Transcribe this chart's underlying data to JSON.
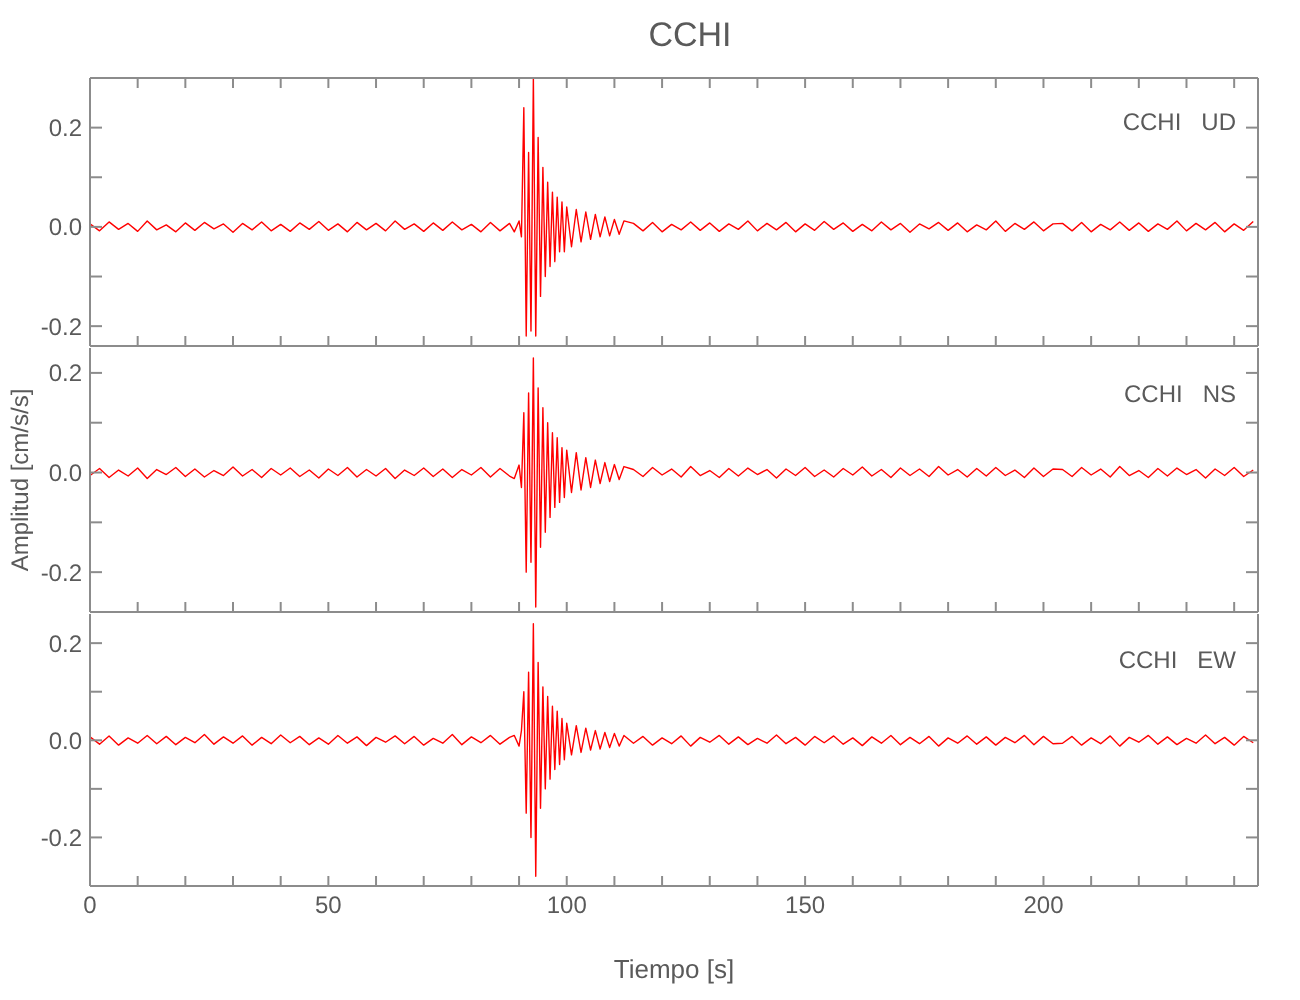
{
  "chart_data": [
    {
      "type": "line",
      "title": "CCHI",
      "annotations": [
        "CCHI   UD"
      ],
      "tick_labels": "y",
      "xlim": [
        0,
        245
      ],
      "ylim": [
        -0.24,
        0.3
      ],
      "yticks": [
        {
          "value": -0.2,
          "label": "-0.2"
        },
        {
          "value": -0.1,
          "label": null
        },
        {
          "value": 0,
          "label": "0.0"
        },
        {
          "value": 0.1,
          "label": null
        },
        {
          "value": 0.2,
          "label": "0.2"
        }
      ],
      "xticks": [
        0,
        {
          "value": 10,
          "label": null
        },
        {
          "value": 20,
          "label": null
        },
        {
          "value": 30,
          "label": null
        },
        {
          "value": 40,
          "label": null
        },
        50,
        {
          "value": 60,
          "label": null
        },
        {
          "value": 70,
          "label": null
        },
        {
          "value": 80,
          "label": null
        },
        {
          "value": 90,
          "label": null
        },
        100,
        {
          "value": 110,
          "label": null
        },
        {
          "value": 120,
          "label": null
        },
        {
          "value": 130,
          "label": null
        },
        {
          "value": 140,
          "label": null
        },
        150,
        {
          "value": 160,
          "label": null
        },
        {
          "value": 170,
          "label": null
        },
        {
          "value": 180,
          "label": null
        },
        {
          "value": 190,
          "label": null
        },
        200,
        {
          "value": 210,
          "label": null
        },
        {
          "value": 220,
          "label": null
        },
        {
          "value": 230,
          "label": null
        },
        {
          "value": 240,
          "label": null
        }
      ],
      "x": [
        0,
        2,
        4,
        6,
        8,
        10,
        12,
        14,
        16,
        18,
        20,
        22,
        24,
        26,
        28,
        30,
        32,
        34,
        36,
        38,
        40,
        42,
        44,
        46,
        48,
        50,
        52,
        54,
        56,
        58,
        60,
        62,
        64,
        66,
        68,
        70,
        72,
        74,
        76,
        78,
        80,
        82,
        84,
        86,
        88,
        89,
        90,
        90.5,
        91,
        91.5,
        92,
        92.5,
        93,
        93.5,
        94,
        94.5,
        95,
        95.5,
        96,
        96.5,
        97,
        97.5,
        98,
        98.5,
        99,
        99.5,
        100,
        101,
        102,
        103,
        104,
        105,
        106,
        107,
        108,
        109,
        110,
        111,
        112,
        114,
        116,
        118,
        120,
        122,
        124,
        126,
        128,
        130,
        132,
        134,
        136,
        138,
        140,
        142,
        144,
        146,
        148,
        150,
        152,
        154,
        156,
        158,
        160,
        162,
        164,
        166,
        168,
        170,
        172,
        174,
        176,
        178,
        180,
        182,
        184,
        186,
        188,
        190,
        192,
        194,
        196,
        198,
        200,
        202,
        204,
        206,
        208,
        210,
        212,
        214,
        216,
        218,
        220,
        222,
        224,
        226,
        228,
        230,
        232,
        234,
        236,
        238,
        240,
        242,
        244
      ],
      "series": [
        {
          "color": "#ff0000",
          "values": [
            0.006,
            -0.008,
            0.01,
            -0.005,
            0.007,
            -0.009,
            0.012,
            -0.006,
            0.004,
            -0.01,
            0.008,
            -0.007,
            0.009,
            -0.004,
            0.006,
            -0.011,
            0.007,
            -0.006,
            0.01,
            -0.008,
            0.005,
            -0.009,
            0.008,
            -0.005,
            0.011,
            -0.007,
            0.006,
            -0.01,
            0.009,
            -0.006,
            0.007,
            -0.008,
            0.012,
            -0.005,
            0.006,
            -0.009,
            0.008,
            -0.007,
            0.01,
            -0.006,
            0.005,
            -0.01,
            0.009,
            -0.008,
            0.007,
            -0.01,
            0.012,
            -0.02,
            0.24,
            -0.22,
            0.15,
            -0.21,
            0.3,
            -0.22,
            0.18,
            -0.14,
            0.12,
            -0.1,
            0.09,
            -0.08,
            0.07,
            -0.07,
            0.06,
            -0.05,
            0.05,
            -0.05,
            0.04,
            -0.04,
            0.035,
            -0.03,
            0.03,
            -0.025,
            0.025,
            -0.02,
            0.02,
            -0.018,
            0.015,
            -0.015,
            0.012,
            0.007,
            -0.008,
            0.009,
            -0.01,
            0.005,
            -0.006,
            0.01,
            -0.007,
            0.008,
            -0.009,
            0.006,
            -0.005,
            0.012,
            -0.008,
            0.007,
            -0.006,
            0.009,
            -0.01,
            0.006,
            -0.007,
            0.011,
            -0.005,
            0.008,
            -0.009,
            0.005,
            -0.008,
            0.01,
            -0.006,
            0.007,
            -0.011,
            0.006,
            -0.004,
            0.009,
            -0.007,
            0.008,
            -0.01,
            0.004,
            -0.006,
            0.012,
            -0.009,
            0.007,
            -0.005,
            0.01,
            -0.008,
            0.006,
            0.007,
            -0.008,
            0.009,
            -0.01,
            0.005,
            -0.006,
            0.01,
            -0.007,
            0.008,
            -0.009,
            0.006,
            -0.005,
            0.012,
            -0.008,
            0.007,
            -0.006,
            0.009,
            -0.01,
            0.006,
            -0.007,
            0.011
          ]
        }
      ]
    },
    {
      "type": "line",
      "ylabel": "Amplitud [cm/s/s]",
      "annotations": [
        "CCHI   NS"
      ],
      "tick_labels": "y",
      "xlim": [
        0,
        245
      ],
      "ylim": [
        -0.28,
        0.25
      ],
      "yticks": [
        {
          "value": -0.2,
          "label": "-0.2"
        },
        {
          "value": -0.1,
          "label": null
        },
        {
          "value": 0,
          "label": "0.0"
        },
        {
          "value": 0.1,
          "label": null
        },
        {
          "value": 0.2,
          "label": "0.2"
        }
      ],
      "xticks": [
        0,
        {
          "value": 10,
          "label": null
        },
        {
          "value": 20,
          "label": null
        },
        {
          "value": 30,
          "label": null
        },
        {
          "value": 40,
          "label": null
        },
        50,
        {
          "value": 60,
          "label": null
        },
        {
          "value": 70,
          "label": null
        },
        {
          "value": 80,
          "label": null
        },
        {
          "value": 90,
          "label": null
        },
        100,
        {
          "value": 110,
          "label": null
        },
        {
          "value": 120,
          "label": null
        },
        {
          "value": 130,
          "label": null
        },
        {
          "value": 140,
          "label": null
        },
        150,
        {
          "value": 160,
          "label": null
        },
        {
          "value": 170,
          "label": null
        },
        {
          "value": 180,
          "label": null
        },
        {
          "value": 190,
          "label": null
        },
        200,
        {
          "value": 210,
          "label": null
        },
        {
          "value": 220,
          "label": null
        },
        {
          "value": 230,
          "label": null
        },
        {
          "value": 240,
          "label": null
        }
      ],
      "x": [
        0,
        2,
        4,
        6,
        8,
        10,
        12,
        14,
        16,
        18,
        20,
        22,
        24,
        26,
        28,
        30,
        32,
        34,
        36,
        38,
        40,
        42,
        44,
        46,
        48,
        50,
        52,
        54,
        56,
        58,
        60,
        62,
        64,
        66,
        68,
        70,
        72,
        74,
        76,
        78,
        80,
        82,
        84,
        86,
        88,
        89,
        90,
        90.5,
        91,
        91.5,
        92,
        92.5,
        93,
        93.5,
        94,
        94.5,
        95,
        95.5,
        96,
        96.5,
        97,
        97.5,
        98,
        98.5,
        99,
        99.5,
        100,
        101,
        102,
        103,
        104,
        105,
        106,
        107,
        108,
        109,
        110,
        111,
        112,
        114,
        116,
        118,
        120,
        122,
        124,
        126,
        128,
        130,
        132,
        134,
        136,
        138,
        140,
        142,
        144,
        146,
        148,
        150,
        152,
        154,
        156,
        158,
        160,
        162,
        164,
        166,
        168,
        170,
        172,
        174,
        176,
        178,
        180,
        182,
        184,
        186,
        188,
        190,
        192,
        194,
        196,
        198,
        200,
        202,
        204,
        206,
        208,
        210,
        212,
        214,
        216,
        218,
        220,
        222,
        224,
        226,
        228,
        230,
        232,
        234,
        236,
        238,
        240,
        242,
        244
      ],
      "series": [
        {
          "color": "#ff0000",
          "values": [
            -0.006,
            0.008,
            -0.01,
            0.005,
            -0.007,
            0.009,
            -0.012,
            0.006,
            -0.004,
            0.01,
            -0.008,
            0.007,
            -0.009,
            0.004,
            -0.006,
            0.011,
            -0.007,
            0.006,
            -0.01,
            0.008,
            -0.005,
            0.009,
            -0.008,
            0.005,
            -0.011,
            0.007,
            -0.006,
            0.01,
            -0.009,
            0.006,
            -0.007,
            0.008,
            -0.012,
            0.005,
            -0.006,
            0.009,
            -0.008,
            0.007,
            -0.01,
            0.006,
            -0.005,
            0.01,
            -0.009,
            0.008,
            -0.007,
            -0.012,
            0.015,
            -0.03,
            0.12,
            -0.2,
            0.16,
            -0.18,
            0.23,
            -0.27,
            0.17,
            -0.15,
            0.13,
            -0.12,
            0.1,
            -0.09,
            0.08,
            -0.07,
            0.07,
            -0.06,
            0.05,
            -0.05,
            0.045,
            -0.04,
            0.04,
            -0.035,
            0.03,
            -0.03,
            0.025,
            -0.022,
            0.02,
            -0.018,
            0.016,
            -0.014,
            0.012,
            0.006,
            -0.008,
            0.01,
            -0.005,
            0.007,
            -0.009,
            0.012,
            -0.006,
            0.004,
            -0.01,
            0.008,
            -0.007,
            0.009,
            -0.004,
            0.006,
            -0.011,
            0.007,
            -0.006,
            0.01,
            -0.008,
            0.005,
            -0.009,
            0.008,
            -0.005,
            0.011,
            -0.007,
            0.006,
            -0.01,
            0.009,
            -0.006,
            0.007,
            -0.008,
            0.012,
            -0.005,
            0.006,
            -0.009,
            0.008,
            -0.007,
            0.01,
            -0.006,
            0.005,
            -0.01,
            0.009,
            -0.008,
            0.007,
            0.006,
            -0.008,
            0.01,
            -0.005,
            0.007,
            -0.009,
            0.012,
            -0.006,
            0.004,
            -0.01,
            0.008,
            -0.007,
            0.009,
            -0.004,
            0.006,
            -0.011,
            0.007,
            -0.006,
            0.01,
            -0.008,
            0.005
          ]
        }
      ]
    },
    {
      "type": "line",
      "xlabel": "Tiempo [s]",
      "annotations": [
        "CCHI   EW"
      ],
      "xlim": [
        0,
        245
      ],
      "ylim": [
        -0.3,
        0.26
      ],
      "yticks": [
        {
          "value": -0.2,
          "label": "-0.2"
        },
        {
          "value": -0.1,
          "label": null
        },
        {
          "value": 0,
          "label": "0.0"
        },
        {
          "value": 0.1,
          "label": null
        },
        {
          "value": 0.2,
          "label": "0.2"
        }
      ],
      "xticks": [
        0,
        {
          "value": 10,
          "label": null
        },
        {
          "value": 20,
          "label": null
        },
        {
          "value": 30,
          "label": null
        },
        {
          "value": 40,
          "label": null
        },
        50,
        {
          "value": 60,
          "label": null
        },
        {
          "value": 70,
          "label": null
        },
        {
          "value": 80,
          "label": null
        },
        {
          "value": 90,
          "label": null
        },
        100,
        {
          "value": 110,
          "label": null
        },
        {
          "value": 120,
          "label": null
        },
        {
          "value": 130,
          "label": null
        },
        {
          "value": 140,
          "label": null
        },
        150,
        {
          "value": 160,
          "label": null
        },
        {
          "value": 170,
          "label": null
        },
        {
          "value": 180,
          "label": null
        },
        {
          "value": 190,
          "label": null
        },
        200,
        {
          "value": 210,
          "label": null
        },
        {
          "value": 220,
          "label": null
        },
        {
          "value": 230,
          "label": null
        },
        {
          "value": 240,
          "label": null
        }
      ],
      "x": [
        0,
        2,
        4,
        6,
        8,
        10,
        12,
        14,
        16,
        18,
        20,
        22,
        24,
        26,
        28,
        30,
        32,
        34,
        36,
        38,
        40,
        42,
        44,
        46,
        48,
        50,
        52,
        54,
        56,
        58,
        60,
        62,
        64,
        66,
        68,
        70,
        72,
        74,
        76,
        78,
        80,
        82,
        84,
        86,
        88,
        89,
        90,
        90.5,
        91,
        91.5,
        92,
        92.5,
        93,
        93.5,
        94,
        94.5,
        95,
        95.5,
        96,
        96.5,
        97,
        97.5,
        98,
        98.5,
        99,
        99.5,
        100,
        101,
        102,
        103,
        104,
        105,
        106,
        107,
        108,
        109,
        110,
        111,
        112,
        114,
        116,
        118,
        120,
        122,
        124,
        126,
        128,
        130,
        132,
        134,
        136,
        138,
        140,
        142,
        144,
        146,
        148,
        150,
        152,
        154,
        156,
        158,
        160,
        162,
        164,
        166,
        168,
        170,
        172,
        174,
        176,
        178,
        180,
        182,
        184,
        186,
        188,
        190,
        192,
        194,
        196,
        198,
        200,
        202,
        204,
        206,
        208,
        210,
        212,
        214,
        216,
        218,
        220,
        222,
        224,
        226,
        228,
        230,
        232,
        234,
        236,
        238,
        240,
        242,
        244
      ],
      "series": [
        {
          "color": "#ff0000",
          "values": [
            0.007,
            -0.008,
            0.009,
            -0.01,
            0.005,
            -0.006,
            0.01,
            -0.007,
            0.008,
            -0.009,
            0.006,
            -0.005,
            0.012,
            -0.008,
            0.007,
            -0.006,
            0.009,
            -0.01,
            0.006,
            -0.007,
            0.011,
            -0.005,
            0.008,
            -0.009,
            0.005,
            -0.008,
            0.01,
            -0.006,
            0.007,
            -0.011,
            0.006,
            -0.004,
            0.009,
            -0.007,
            0.008,
            -0.01,
            0.004,
            -0.006,
            0.012,
            -0.009,
            0.007,
            -0.005,
            0.01,
            -0.008,
            0.006,
            0.01,
            -0.012,
            0.02,
            0.1,
            -0.15,
            0.14,
            -0.2,
            0.24,
            -0.28,
            0.16,
            -0.14,
            0.11,
            -0.1,
            0.09,
            -0.08,
            0.07,
            -0.06,
            0.06,
            -0.05,
            0.045,
            -0.04,
            0.035,
            -0.03,
            0.03,
            -0.025,
            0.025,
            -0.02,
            0.02,
            -0.018,
            0.016,
            -0.015,
            0.014,
            -0.012,
            0.01,
            -0.006,
            0.008,
            -0.01,
            0.005,
            -0.007,
            0.009,
            -0.012,
            0.006,
            -0.004,
            0.01,
            -0.008,
            0.007,
            -0.009,
            0.004,
            -0.006,
            0.011,
            -0.007,
            0.006,
            -0.01,
            0.008,
            -0.005,
            0.009,
            -0.008,
            0.005,
            -0.011,
            0.007,
            -0.006,
            0.01,
            -0.009,
            0.006,
            -0.007,
            0.008,
            -0.012,
            0.005,
            -0.006,
            0.009,
            -0.008,
            0.007,
            -0.01,
            0.006,
            -0.005,
            0.01,
            -0.009,
            0.008,
            -0.007,
            -0.006,
            0.008,
            -0.01,
            0.005,
            -0.007,
            0.009,
            -0.012,
            0.006,
            -0.004,
            0.01,
            -0.008,
            0.007,
            -0.009,
            0.004,
            -0.006,
            0.011,
            -0.007,
            0.006,
            -0.01,
            0.008,
            -0.005
          ]
        }
      ]
    }
  ]
}
